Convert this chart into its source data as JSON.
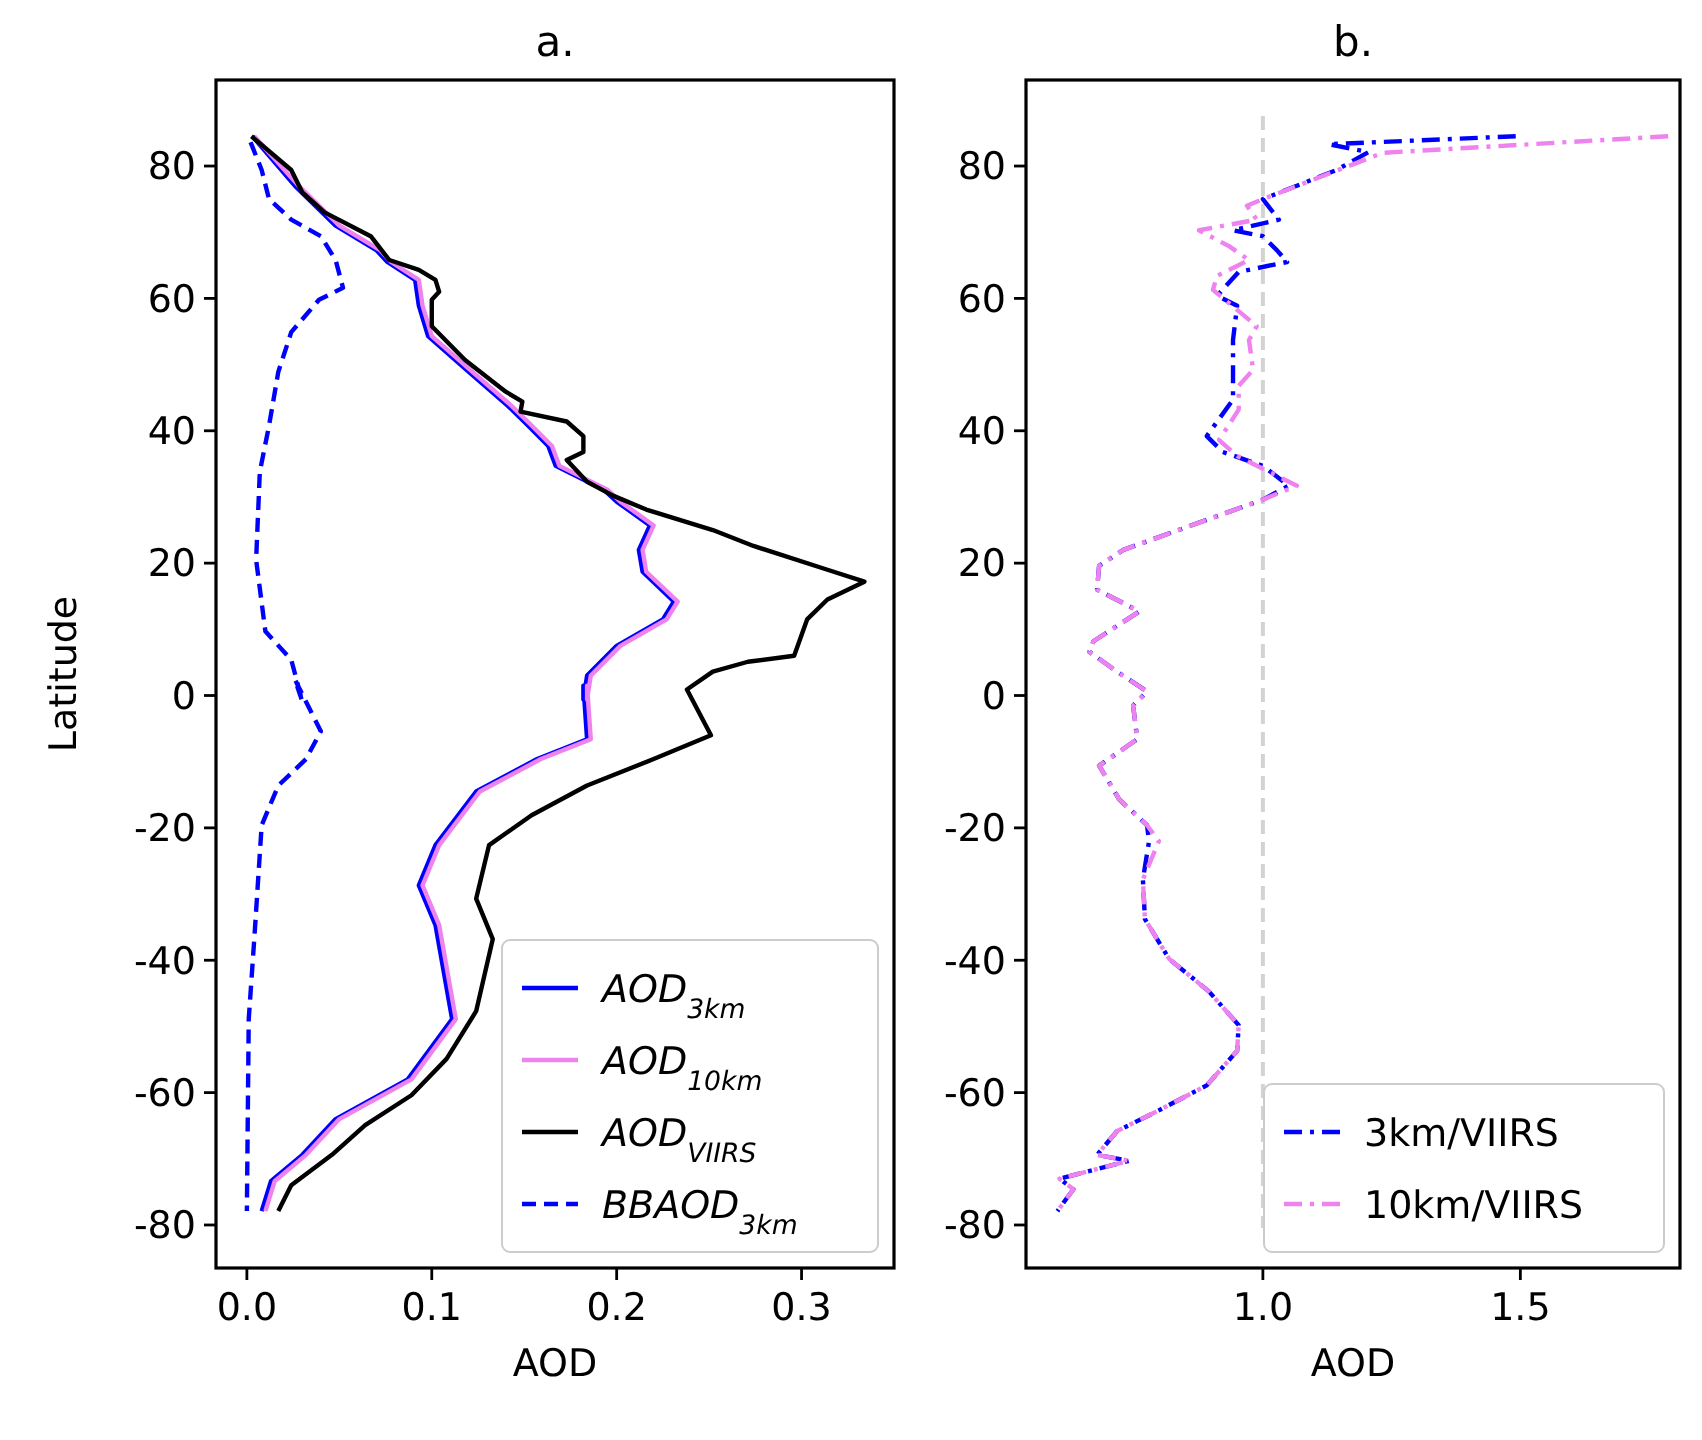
{
  "chart_data": [
    {
      "type": "line",
      "title": "a.",
      "xlabel": "AOD",
      "ylabel": "Latitude",
      "xlim": [
        -0.0167,
        0.35
      ],
      "ylim": [
        -86.5,
        93
      ],
      "xticks": [
        {
          "value": 0,
          "label": "0.0"
        },
        0.1,
        0.2,
        0.3
      ],
      "yticks": [
        -80,
        -60,
        -40,
        -20,
        0,
        20,
        40,
        60,
        80
      ],
      "legend": "bottom right",
      "grid": false,
      "series": [
        {
          "name": "AOD$_{3km}$",
          "color": "#0000ff",
          "line_style": "solid",
          "x": [
            0.003,
            0.026,
            0.048,
            0.07,
            0.076,
            0.091,
            0.093,
            0.098,
            0.12,
            0.141,
            0.152,
            0.163,
            0.167,
            0.193,
            0.2,
            0.218,
            0.212,
            0.214,
            0.231,
            0.225,
            0.2,
            0.184,
            0.182,
            0.182,
            0.184,
            0.157,
            0.124,
            0.102,
            0.093,
            0.102,
            0.111,
            0.087,
            0.048,
            0.03,
            0.013,
            0.008
          ],
          "values": [
            84.5,
            77,
            71,
            67.3,
            65.5,
            62.8,
            58.9,
            54.3,
            48.9,
            43.8,
            40.8,
            37.7,
            34.7,
            31.1,
            29.3,
            25.7,
            22,
            18.7,
            14.2,
            11.5,
            7.5,
            3,
            -0.6,
            1.5,
            -6.6,
            -9.6,
            -14.5,
            -22.6,
            -28.7,
            -34.7,
            -48.9,
            -58,
            -64,
            -69.4,
            -73.4,
            -77.9
          ]
        },
        {
          "name": "AOD$_{10km}$",
          "color": "#ee82ee",
          "line_style": "solid",
          "x": [
            0.004,
            0.028,
            0.05,
            0.072,
            0.078,
            0.093,
            0.095,
            0.1,
            0.122,
            0.143,
            0.154,
            0.165,
            0.169,
            0.195,
            0.202,
            0.22,
            0.214,
            0.216,
            0.233,
            0.227,
            0.202,
            0.186,
            0.184,
            0.184,
            0.186,
            0.159,
            0.126,
            0.104,
            0.095,
            0.104,
            0.113,
            0.089,
            0.05,
            0.032,
            0.015,
            0.01
          ],
          "values": [
            84.5,
            77,
            71,
            67.3,
            65.5,
            62.8,
            58.9,
            54.3,
            48.9,
            43.8,
            40.8,
            37.7,
            34.7,
            31.1,
            29.3,
            25.7,
            22,
            18.7,
            14.2,
            11.5,
            7.5,
            3,
            -0.6,
            1.5,
            -6.6,
            -9.6,
            -14.5,
            -22.6,
            -28.7,
            -34.7,
            -48.9,
            -58,
            -64,
            -69.4,
            -73.4,
            -77.9
          ]
        },
        {
          "name": "AOD$_{VIIRS}$",
          "color": "#000000",
          "line_style": "solid",
          "x": [
            0.0025,
            0.024,
            0.03,
            0.042,
            0.067,
            0.077,
            0.093,
            0.102,
            0.104,
            0.1,
            0.1,
            0.118,
            0.14,
            0.149,
            0.148,
            0.173,
            0.182,
            0.182,
            0.173,
            0.184,
            0.198,
            0.216,
            0.252,
            0.274,
            0.314,
            0.334,
            0.314,
            0.303,
            0.296,
            0.271,
            0.252,
            0.238,
            0.251,
            0.22,
            0.184,
            0.154,
            0.131,
            0.124,
            0.133,
            0.124,
            0.108,
            0.089,
            0.064,
            0.046,
            0.024,
            0.017
          ],
          "values": [
            84.5,
            79.4,
            76,
            73,
            69.4,
            65.8,
            64.3,
            62.8,
            61,
            59.8,
            55.8,
            50.7,
            45.9,
            44.4,
            42.9,
            41.4,
            39.2,
            36.8,
            35.6,
            32.3,
            30.2,
            28.1,
            25,
            22.6,
            19,
            17.2,
            14.5,
            11.5,
            6,
            5.1,
            3.6,
            0.9,
            -6,
            -9.6,
            -13.6,
            -18.1,
            -22.6,
            -30.7,
            -36.8,
            -47.7,
            -54.9,
            -60.4,
            -64.9,
            -69.4,
            -74,
            -77.9
          ]
        },
        {
          "name": "BBAOD$_{3km}$",
          "color": "#0000ff",
          "line_style": "dashed",
          "x": [
            0.002,
            0.008,
            0.012,
            0.024,
            0.04,
            0.048,
            0.052,
            0.039,
            0.024,
            0.017,
            0.012,
            0.007,
            0.005,
            0.01,
            0.024,
            0.03,
            0.026,
            0.04,
            0.032,
            0.017,
            0.008,
            0.004,
            0.001,
            0.0
          ],
          "values": [
            83.6,
            79.4,
            75,
            71.9,
            69.4,
            65.8,
            61.6,
            59.8,
            54.9,
            48.9,
            40.8,
            33.8,
            20.5,
            9.7,
            5.4,
            -0.9,
            2.4,
            -5.4,
            -9.6,
            -13.6,
            -19.6,
            -36.8,
            -48.9,
            -77.9
          ]
        }
      ]
    },
    {
      "type": "line",
      "title": "b.",
      "xlabel": "AOD",
      "xlim": [
        0.54,
        1.81
      ],
      "ylim": [
        -86.5,
        93
      ],
      "xticks": [
        {
          "value": 1,
          "label": "1.0"
        },
        1.5
      ],
      "yticks": [
        -80,
        -60,
        -40,
        -20,
        0,
        20,
        40,
        60,
        80
      ],
      "legend": "bottom right",
      "grid": false,
      "ref_lines": [
        {
          "axis": "x",
          "value": 1,
          "color": "#d3d3d3",
          "line_style": "dashed"
        }
      ],
      "series": [
        {
          "name": "3km/VIIRS",
          "color": "#0000ff",
          "line_style": "dashdot",
          "x": [
            1.491,
            1.128,
            1.205,
            1.143,
            1.0,
            1.031,
            0.942,
            1.0,
            1.027,
            1.047,
            0.953,
            0.911,
            0.95,
            0.942,
            0.942,
            0.942,
            0.891,
            0.922,
            1.0,
            1.05,
            1.0,
            0.729,
            0.682,
            0.678,
            0.76,
            0.671,
            0.663,
            0.717,
            0.775,
            0.748,
            0.756,
            0.682,
            0.721,
            0.775,
            0.779,
            0.767,
            0.771,
            0.818,
            0.895,
            0.953,
            0.95,
            0.891,
            0.795,
            0.717,
            0.678,
            0.74,
            0.605,
            0.632,
            0.601
          ],
          "values": [
            84.5,
            83.3,
            82.1,
            79.4,
            75,
            71.9,
            70.3,
            69.4,
            67.3,
            65.5,
            64,
            60.4,
            58.9,
            53.7,
            48.9,
            44.7,
            39.2,
            36.8,
            34.7,
            31.7,
            29.6,
            22,
            19.6,
            16,
            12.7,
            8.2,
            6.6,
            3.6,
            0.6,
            -1.5,
            -6.6,
            -10.6,
            -15.7,
            -19.6,
            -22,
            -27.8,
            -33.8,
            -39.8,
            -44.7,
            -49.8,
            -53.7,
            -58.9,
            -62.8,
            -65.8,
            -69.4,
            -70.3,
            -73,
            -74.6,
            -77.9
          ]
        },
        {
          "name": "10km/VIIRS",
          "color": "#ee82ee",
          "line_style": "dashdot",
          "x": [
            1.787,
            1.233,
            1.0,
            0.969,
            0.988,
            0.876,
            0.934,
            0.973,
            0.911,
            0.903,
            0.988,
            0.973,
            0.981,
            0.953,
            0.953,
            0.915,
            0.95,
            1.066,
            1.0,
            0.729,
            0.682,
            0.678,
            0.76,
            0.671,
            0.663,
            0.717,
            0.775,
            0.748,
            0.756,
            0.682,
            0.721,
            0.775,
            0.798,
            0.767,
            0.771,
            0.818,
            0.895,
            0.953,
            0.95,
            0.891,
            0.795,
            0.717,
            0.678,
            0.74,
            0.605,
            0.632,
            0.601
          ],
          "values": [
            84.5,
            82,
            75,
            74,
            71.9,
            70.3,
            67.9,
            65.8,
            63.4,
            61.3,
            55.8,
            53.7,
            49.2,
            46.8,
            43.2,
            38.6,
            36.2,
            31.7,
            29.6,
            22,
            19.6,
            16,
            12.7,
            8.2,
            6.6,
            3.6,
            0.6,
            -1.5,
            -6.6,
            -10.6,
            -15.7,
            -19.6,
            -22,
            -27.8,
            -33.8,
            -39.8,
            -44.7,
            -49.8,
            -53.7,
            -58.9,
            -62.8,
            -65.8,
            -69.4,
            -70.3,
            -73,
            -74.6,
            -77.9
          ]
        }
      ]
    }
  ]
}
